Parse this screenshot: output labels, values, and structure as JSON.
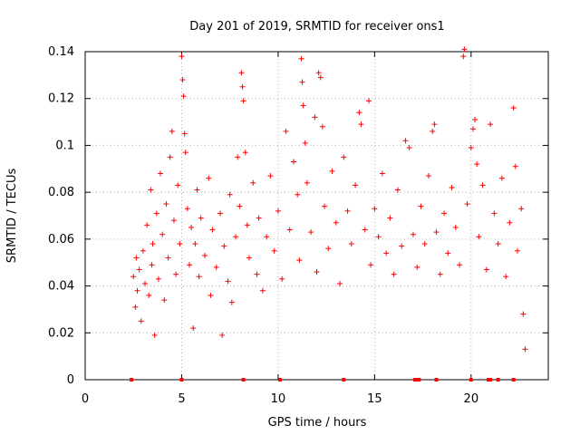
{
  "chart_data": {
    "type": "scatter",
    "title": "Day 201 of 2019, SRMTID for receiver ons1",
    "xlabel": "GPS time / hours",
    "ylabel": "SRMTID / TECUs",
    "xlim": [
      0,
      24
    ],
    "ylim": [
      0,
      0.14
    ],
    "xticks": [
      0,
      5,
      10,
      15,
      20
    ],
    "xtick_labels": [
      "0",
      "5",
      "10",
      "15",
      "20"
    ],
    "yticks": [
      0,
      0.02,
      0.04,
      0.06,
      0.08,
      0.1,
      0.12,
      0.14
    ],
    "ytick_labels": [
      "0",
      "0.02",
      "0.04",
      "0.06",
      "0.08",
      "0.1",
      "0.12",
      "0.14"
    ],
    "grid": true,
    "marker": "+",
    "color": "#ff0000",
    "series": [
      {
        "name": "SRMTID",
        "points": [
          [
            2.5,
            0.044
          ],
          [
            2.6,
            0.031
          ],
          [
            2.65,
            0.052
          ],
          [
            2.7,
            0.038
          ],
          [
            2.8,
            0.047
          ],
          [
            2.9,
            0.025
          ],
          [
            3.0,
            0.055
          ],
          [
            3.1,
            0.041
          ],
          [
            3.2,
            0.066
          ],
          [
            3.3,
            0.036
          ],
          [
            3.4,
            0.081
          ],
          [
            3.45,
            0.049
          ],
          [
            3.5,
            0.058
          ],
          [
            3.6,
            0.019
          ],
          [
            3.7,
            0.071
          ],
          [
            3.8,
            0.043
          ],
          [
            3.9,
            0.088
          ],
          [
            4.0,
            0.062
          ],
          [
            4.1,
            0.034
          ],
          [
            4.2,
            0.075
          ],
          [
            4.3,
            0.052
          ],
          [
            4.4,
            0.095
          ],
          [
            4.5,
            0.106
          ],
          [
            4.6,
            0.068
          ],
          [
            4.7,
            0.045
          ],
          [
            4.8,
            0.083
          ],
          [
            4.9,
            0.058
          ],
          [
            5.0,
            0.138
          ],
          [
            5.05,
            0.128
          ],
          [
            5.1,
            0.121
          ],
          [
            5.15,
            0.105
          ],
          [
            5.2,
            0.097
          ],
          [
            5.3,
            0.073
          ],
          [
            5.4,
            0.049
          ],
          [
            5.5,
            0.065
          ],
          [
            5.6,
            0.022
          ],
          [
            5.7,
            0.058
          ],
          [
            5.8,
            0.081
          ],
          [
            5.9,
            0.044
          ],
          [
            6.0,
            0.069
          ],
          [
            6.2,
            0.053
          ],
          [
            6.4,
            0.086
          ],
          [
            6.5,
            0.036
          ],
          [
            6.6,
            0.064
          ],
          [
            6.8,
            0.048
          ],
          [
            7.0,
            0.071
          ],
          [
            7.1,
            0.019
          ],
          [
            7.2,
            0.057
          ],
          [
            7.4,
            0.042
          ],
          [
            7.5,
            0.079
          ],
          [
            7.6,
            0.033
          ],
          [
            7.8,
            0.061
          ],
          [
            7.9,
            0.095
          ],
          [
            8.0,
            0.074
          ],
          [
            8.1,
            0.131
          ],
          [
            8.15,
            0.125
          ],
          [
            8.2,
            0.119
          ],
          [
            8.3,
            0.097
          ],
          [
            8.4,
            0.066
          ],
          [
            8.5,
            0.052
          ],
          [
            8.7,
            0.084
          ],
          [
            8.9,
            0.045
          ],
          [
            9.0,
            0.069
          ],
          [
            9.2,
            0.038
          ],
          [
            9.4,
            0.061
          ],
          [
            9.6,
            0.087
          ],
          [
            9.8,
            0.055
          ],
          [
            10.0,
            0.072
          ],
          [
            10.2,
            0.043
          ],
          [
            10.4,
            0.106
          ],
          [
            10.6,
            0.064
          ],
          [
            10.8,
            0.093
          ],
          [
            11.0,
            0.079
          ],
          [
            11.1,
            0.051
          ],
          [
            11.2,
            0.137
          ],
          [
            11.25,
            0.127
          ],
          [
            11.3,
            0.117
          ],
          [
            11.4,
            0.101
          ],
          [
            11.5,
            0.084
          ],
          [
            11.7,
            0.063
          ],
          [
            11.9,
            0.112
          ],
          [
            12.0,
            0.046
          ],
          [
            12.1,
            0.131
          ],
          [
            12.2,
            0.129
          ],
          [
            12.3,
            0.108
          ],
          [
            12.4,
            0.074
          ],
          [
            12.6,
            0.056
          ],
          [
            12.8,
            0.089
          ],
          [
            13.0,
            0.067
          ],
          [
            13.2,
            0.041
          ],
          [
            13.4,
            0.095
          ],
          [
            13.6,
            0.072
          ],
          [
            13.8,
            0.058
          ],
          [
            14.0,
            0.083
          ],
          [
            14.2,
            0.114
          ],
          [
            14.3,
            0.109
          ],
          [
            14.5,
            0.064
          ],
          [
            14.7,
            0.119
          ],
          [
            14.8,
            0.049
          ],
          [
            15.0,
            0.073
          ],
          [
            15.2,
            0.061
          ],
          [
            15.4,
            0.088
          ],
          [
            15.6,
            0.054
          ],
          [
            15.8,
            0.069
          ],
          [
            16.0,
            0.045
          ],
          [
            16.2,
            0.081
          ],
          [
            16.4,
            0.057
          ],
          [
            16.6,
            0.102
          ],
          [
            16.8,
            0.099
          ],
          [
            17.0,
            0.062
          ],
          [
            17.2,
            0.048
          ],
          [
            17.4,
            0.074
          ],
          [
            17.6,
            0.058
          ],
          [
            17.8,
            0.087
          ],
          [
            18.0,
            0.106
          ],
          [
            18.1,
            0.109
          ],
          [
            18.2,
            0.063
          ],
          [
            18.4,
            0.045
          ],
          [
            18.6,
            0.071
          ],
          [
            18.8,
            0.054
          ],
          [
            19.0,
            0.082
          ],
          [
            19.2,
            0.065
          ],
          [
            19.4,
            0.049
          ],
          [
            19.6,
            0.138
          ],
          [
            19.65,
            0.141
          ],
          [
            19.8,
            0.075
          ],
          [
            20.0,
            0.099
          ],
          [
            20.1,
            0.107
          ],
          [
            20.2,
            0.111
          ],
          [
            20.3,
            0.092
          ],
          [
            20.4,
            0.061
          ],
          [
            20.6,
            0.083
          ],
          [
            20.8,
            0.047
          ],
          [
            21.0,
            0.109
          ],
          [
            21.2,
            0.071
          ],
          [
            21.4,
            0.058
          ],
          [
            21.6,
            0.086
          ],
          [
            21.8,
            0.044
          ],
          [
            22.0,
            0.067
          ],
          [
            22.2,
            0.116
          ],
          [
            22.3,
            0.091
          ],
          [
            22.4,
            0.055
          ],
          [
            22.6,
            0.073
          ],
          [
            22.7,
            0.028
          ],
          [
            22.8,
            0.013
          ]
        ]
      }
    ],
    "baseline_markers": [
      2.4,
      5.0,
      8.2,
      10.1,
      13.4,
      17.1,
      17.2,
      17.3,
      18.2,
      20.0,
      20.9,
      21.0,
      21.4,
      22.2
    ]
  }
}
